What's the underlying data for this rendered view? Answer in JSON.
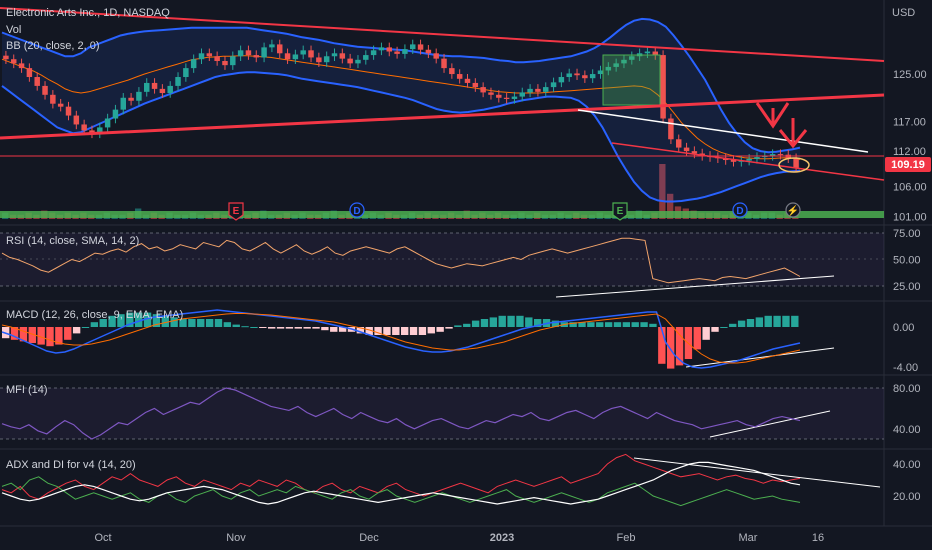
{
  "chart_data": {
    "type": "line",
    "symbol_title": "Electronic Arts Inc., 1D, NASDAQ",
    "currency": "USD",
    "overlay_labels": [
      "Vol",
      "BB (20, close, 2, 0)"
    ],
    "last_price": "109.19",
    "price_axis": [
      {
        "label": "125.00",
        "value": 125
      },
      {
        "label": "117.00",
        "value": 117
      },
      {
        "label": "112.00",
        "value": 112
      },
      {
        "label": "106.00",
        "value": 106
      },
      {
        "label": "101.00",
        "value": 101
      }
    ],
    "x_axis_labels": [
      "Oct",
      "Nov",
      "Dec",
      "2023",
      "Feb",
      "Mar",
      "16"
    ],
    "event_badges": [
      "E",
      "D",
      "E",
      "D",
      "⚡"
    ],
    "price_close": [
      127.5,
      126.8,
      126,
      124.5,
      123,
      121.5,
      120,
      119.5,
      118,
      116.5,
      115.5,
      115,
      116,
      117.5,
      119,
      121,
      120.5,
      122,
      123.5,
      122.5,
      121.8,
      123,
      124.5,
      126,
      127.5,
      128.5,
      128,
      127.2,
      126.5,
      128,
      129,
      128.2,
      127.8,
      129.5,
      130,
      128.5,
      127.5,
      128.3,
      129,
      127.8,
      127,
      128,
      128.5,
      127.6,
      126.8,
      127.4,
      128.2,
      129,
      129.5,
      128.8,
      128.4,
      129.2,
      130,
      129.1,
      128.5,
      127.6,
      126,
      125,
      124.2,
      123.5,
      122.8,
      121.9,
      121.5,
      121,
      120.8,
      121.2,
      121.9,
      122.5,
      122,
      122.8,
      123.6,
      124.5,
      125.1,
      124.8,
      124.3,
      125,
      125.6,
      126.2,
      126.8,
      127.4,
      128,
      128.5,
      128.8,
      128.2,
      117.5,
      114,
      112.6,
      112,
      111.6,
      111.2,
      111,
      110.8,
      110.5,
      110.2,
      110.4,
      110.7,
      111,
      111.2,
      111.5,
      111.4,
      110.8,
      109.19
    ],
    "bb_upper": [
      132,
      131.5,
      131,
      130.5,
      130,
      129.5,
      129,
      128.5,
      128,
      128,
      128.5,
      129.5,
      130,
      130.5,
      131,
      131.5,
      131.8,
      132,
      132.2,
      132.3,
      132.4,
      132.5,
      132.6,
      132.7,
      132.8,
      132.8,
      132.8,
      132.8,
      132.8,
      132.8,
      132.8,
      132.8,
      132.6,
      132.4,
      132.2,
      132,
      131.8,
      131.5,
      131.2,
      131,
      130.8,
      130.5,
      130.2,
      130,
      129.8,
      129.6,
      129.5,
      129.4,
      129.3,
      129.2,
      129.1,
      129,
      128.8,
      128.6,
      128.4,
      128.2,
      128.1,
      128,
      128,
      127.9,
      127.8,
      127.7,
      127.5,
      127.3,
      127.2,
      127,
      127,
      127.1,
      127.2,
      127.4,
      127.6,
      127.8,
      128,
      128.4,
      128.8,
      129.4,
      130.2,
      131.2,
      132.3,
      133.3,
      134,
      134.3,
      134.2,
      133.8,
      133,
      131.5,
      129.8,
      128,
      126,
      124,
      121.5,
      119,
      116.8,
      115,
      113.5,
      112.5,
      112,
      111.8,
      111.9,
      112.1,
      112.3,
      112.6
    ],
    "bb_lower": [
      123,
      122,
      121,
      120,
      119,
      118,
      117,
      116,
      115.5,
      115,
      115.2,
      115.8,
      116.4,
      117,
      117.6,
      118.2,
      118.8,
      119.4,
      120,
      120.5,
      121,
      121.5,
      122,
      122.5,
      123,
      123.5,
      124,
      124.5,
      124.8,
      125,
      125.2,
      125.3,
      125.3,
      125.2,
      125.1,
      125,
      124.8,
      124.5,
      124.2,
      124,
      123.8,
      123.6,
      123.4,
      123.2,
      123,
      122.8,
      122.5,
      122.2,
      121.9,
      121.6,
      121.3,
      121,
      120.6,
      120.1,
      119.6,
      119.1,
      118.8,
      118.6,
      118.5,
      118.6,
      118.8,
      119,
      119.3,
      119.6,
      120,
      120.3,
      120.6,
      120.8,
      121,
      121.2,
      121.2,
      121.1,
      121,
      120.5,
      119.5,
      118,
      116,
      113.5,
      111,
      108.8,
      106.8,
      105.3,
      104.2,
      103.7,
      103.5,
      103.5,
      103.6,
      103.8,
      104,
      104.3,
      104.7,
      105.1,
      105.6,
      106.1,
      106.6,
      107.1,
      107.6,
      108,
      108.3,
      108.5,
      108.6,
      108.7
    ],
    "bb_basis": [
      127.5,
      127,
      126.5,
      126,
      125.5,
      124.8,
      124,
      123.3,
      122.5,
      122,
      121.8,
      122,
      122.4,
      122.8,
      123.2,
      123.6,
      124,
      124.5,
      125,
      125.4,
      125.8,
      126.2,
      126.6,
      127,
      127.4,
      127.6,
      127.8,
      127.9,
      128,
      128,
      128.1,
      128.1,
      128,
      127.9,
      127.8,
      127.6,
      127.4,
      127.2,
      127,
      126.8,
      126.6,
      126.4,
      126.2,
      126,
      125.8,
      125.6,
      125.4,
      125.2,
      125,
      124.8,
      124.6,
      124.4,
      124.2,
      124,
      123.8,
      123.6,
      123.4,
      123.2,
      123,
      122.8,
      122.6,
      122.4,
      122.2,
      122,
      121.9,
      121.8,
      121.8,
      121.8,
      121.8,
      121.9,
      122,
      122.1,
      122.2,
      122.3,
      122.4,
      122.5,
      122.6,
      122.7,
      122.8,
      122.9,
      123,
      122.9,
      122.5,
      121.5,
      120.1,
      118.5,
      116.8,
      115.5,
      114.2,
      113.2,
      112.4,
      111.8,
      111.4,
      111.1,
      110.9,
      110.8,
      110.7,
      110.7,
      110.8,
      110.9,
      110.8,
      110.6
    ],
    "volume": [
      3,
      2,
      2,
      3,
      2,
      4,
      3,
      2,
      3,
      2,
      3,
      2,
      2,
      3,
      2,
      2,
      3,
      5,
      2,
      3,
      2,
      3,
      2,
      2,
      3,
      2,
      2,
      3,
      2,
      3,
      2,
      2,
      3,
      4,
      2,
      2,
      3,
      2,
      3,
      2,
      2,
      3,
      4,
      2,
      3,
      2,
      2,
      3,
      2,
      3,
      2,
      2,
      3,
      2,
      3,
      2,
      2,
      3,
      2,
      4,
      2,
      3,
      2,
      3,
      2,
      2,
      3,
      2,
      3,
      2,
      2,
      3,
      2,
      3,
      2,
      2,
      3,
      2,
      3,
      2,
      2,
      4,
      2,
      3,
      30,
      12,
      6,
      5,
      4,
      3,
      3,
      3,
      2,
      3,
      2,
      3,
      2,
      3,
      3,
      2,
      3,
      2
    ],
    "rsi": {
      "label": "RSI (14, close, SMA, 14, 2)",
      "axis": [
        {
          "label": "75.00",
          "value": 75
        },
        {
          "label": "50.00",
          "value": 50
        },
        {
          "label": "25.00",
          "value": 25
        }
      ],
      "values": [
        56,
        52,
        50,
        47,
        44,
        40,
        38,
        42,
        46,
        50,
        48,
        52,
        56,
        55,
        58,
        60,
        57,
        62,
        65,
        60,
        62,
        58,
        60,
        64,
        62,
        60,
        66,
        64,
        62,
        68,
        66,
        60,
        58,
        62,
        66,
        60,
        56,
        60,
        64,
        58,
        55,
        58,
        62,
        56,
        54,
        58,
        60,
        62,
        60,
        58,
        56,
        60,
        62,
        58,
        54,
        50,
        46,
        44,
        42,
        44,
        46,
        45,
        44,
        46,
        48,
        50,
        52,
        50,
        54,
        56,
        58,
        60,
        58,
        56,
        58,
        60,
        62,
        64,
        66,
        68,
        70,
        70,
        69,
        68,
        32,
        30,
        28,
        29,
        30,
        31,
        32,
        31,
        30,
        33,
        34,
        33,
        32,
        34,
        36,
        38,
        40,
        42,
        38,
        34
      ]
    },
    "macd": {
      "label": "MACD (12, 26, close, 9, EMA, EMA)",
      "axis": [
        {
          "label": "0.00",
          "value": 0
        },
        {
          "label": "-4.00",
          "value": -4
        }
      ],
      "macd_line": [
        -0.5,
        -0.8,
        -1.2,
        -1.6,
        -2,
        -2.4,
        -2.6,
        -2.5,
        -2.2,
        -1.8,
        -1.4,
        -1,
        -0.6,
        -0.2,
        0.2,
        0.5,
        0.8,
        1,
        1.1,
        1.2,
        1.3,
        1.4,
        1.5,
        1.6,
        1.7,
        1.6,
        1.5,
        1.4,
        1.3,
        1.2,
        1.1,
        1,
        0.9,
        0.8,
        0.7,
        0.6,
        0.4,
        0.2,
        0,
        -0.2,
        -0.5,
        -0.8,
        -1.1,
        -1.4,
        -1.7,
        -2,
        -2.2,
        -2.4,
        -2.5,
        -2.5,
        -2.4,
        -2.2,
        -2,
        -1.7,
        -1.4,
        -1.1,
        -0.8,
        -0.5,
        -0.2,
        0,
        0.2,
        0.4,
        0.5,
        0.6,
        0.7,
        0.8,
        0.9,
        1,
        1.1,
        1.2,
        1.3,
        1.4,
        1.5,
        1.5,
        -1.5,
        -2.8,
        -3.6,
        -4,
        -4.1,
        -4,
        -3.8,
        -3.6,
        -3.4,
        -3.1,
        -2.8,
        -2.5,
        -2.2,
        -2,
        -1.8,
        -1.6
      ],
      "signal_line": [
        0.2,
        0,
        -0.3,
        -0.6,
        -0.9,
        -1.2,
        -1.5,
        -1.7,
        -1.8,
        -1.8,
        -1.7,
        -1.5,
        -1.3,
        -1,
        -0.7,
        -0.4,
        -0.1,
        0.2,
        0.4,
        0.6,
        0.8,
        0.9,
        1,
        1.1,
        1.2,
        1.3,
        1.35,
        1.35,
        1.3,
        1.25,
        1.2,
        1.1,
        1,
        0.9,
        0.8,
        0.7,
        0.6,
        0.5,
        0.3,
        0.1,
        -0.1,
        -0.3,
        -0.6,
        -0.9,
        -1.2,
        -1.5,
        -1.7,
        -1.9,
        -2.1,
        -2.2,
        -2.3,
        -2.3,
        -2.2,
        -2.1,
        -1.9,
        -1.7,
        -1.5,
        -1.2,
        -0.9,
        -0.6,
        -0.3,
        -0.1,
        0.1,
        0.3,
        0.4,
        0.5,
        0.6,
        0.7,
        0.8,
        0.9,
        1,
        1.1,
        1.2,
        1.3,
        0.8,
        -0.2,
        -1.2,
        -2,
        -2.7,
        -3.2,
        -3.5,
        -3.6,
        -3.6,
        -3.5,
        -3.3,
        -3.1,
        -2.9,
        -2.7,
        -2.5,
        -2.3
      ]
    },
    "mfi": {
      "label": "MFI (14)",
      "axis": [
        {
          "label": "80.00",
          "value": 80
        },
        {
          "label": "40.00",
          "value": 40
        }
      ],
      "values": [
        45,
        42,
        40,
        44,
        38,
        35,
        42,
        48,
        44,
        36,
        30,
        34,
        40,
        46,
        44,
        50,
        56,
        60,
        54,
        58,
        62,
        66,
        64,
        70,
        76,
        80,
        78,
        74,
        70,
        66,
        62,
        60,
        58,
        62,
        56,
        52,
        56,
        60,
        54,
        50,
        56,
        52,
        48,
        46,
        50,
        44,
        40,
        44,
        48,
        50,
        46,
        42,
        40,
        44,
        48,
        46,
        50,
        54,
        52,
        56,
        50,
        48,
        52,
        56,
        58,
        54,
        50,
        56,
        60,
        62,
        58,
        54,
        50,
        56,
        52,
        48,
        46,
        44,
        40,
        42,
        44,
        46,
        48,
        44,
        42,
        46,
        50,
        52,
        50,
        48
      ]
    },
    "adx": {
      "label": "ADX and DI for v4 (14, 20)",
      "axis": [
        {
          "label": "40.00",
          "value": 40
        },
        {
          "label": "20.00",
          "value": 20
        }
      ],
      "adx": [
        22,
        20,
        18,
        17,
        18,
        20,
        22,
        24,
        26,
        27,
        26,
        24,
        22,
        20,
        18,
        17,
        18,
        20,
        22,
        23,
        24,
        25,
        26,
        25,
        24,
        22,
        20,
        18,
        16,
        15,
        16,
        18,
        20,
        22,
        23,
        22,
        21,
        20,
        19,
        18,
        17,
        16,
        17,
        18,
        19,
        20,
        21,
        22,
        21,
        20,
        19,
        18,
        17,
        16,
        15,
        16,
        17,
        18,
        19,
        18,
        17,
        16,
        15,
        16,
        17,
        18,
        20,
        22,
        24,
        26,
        28,
        30,
        33,
        36,
        38,
        40,
        41,
        41,
        40,
        39,
        38,
        37,
        36,
        34,
        32,
        30,
        28,
        27
      ],
      "di_plus": [
        24,
        22,
        26,
        20,
        18,
        22,
        25,
        28,
        30,
        26,
        24,
        28,
        32,
        30,
        34,
        30,
        28,
        26,
        30,
        32,
        28,
        26,
        30,
        28,
        26,
        24,
        28,
        26,
        30,
        28,
        26,
        30,
        28,
        24,
        22,
        26,
        28,
        24,
        22,
        26,
        24,
        22,
        26,
        28,
        24,
        22,
        20,
        22,
        24,
        26,
        28,
        26,
        24,
        22,
        26,
        28,
        30,
        28,
        26,
        28,
        30,
        32,
        28,
        30,
        32,
        34,
        40,
        44,
        46,
        42,
        40,
        38,
        36,
        34,
        32,
        33,
        34,
        32,
        30,
        32,
        33,
        31,
        30,
        28,
        30,
        29,
        30,
        31
      ],
      "di_minus": [
        26,
        28,
        24,
        30,
        32,
        28,
        26,
        22,
        18,
        20,
        22,
        20,
        18,
        20,
        22,
        18,
        16,
        20,
        22,
        18,
        16,
        20,
        22,
        24,
        20,
        18,
        22,
        24,
        20,
        22,
        24,
        22,
        26,
        24,
        22,
        20,
        18,
        22,
        24,
        20,
        18,
        22,
        24,
        20,
        18,
        16,
        18,
        20,
        22,
        20,
        18,
        16,
        18,
        20,
        22,
        24,
        20,
        18,
        16,
        18,
        20,
        22,
        20,
        18,
        16,
        18,
        22,
        24,
        26,
        28,
        24,
        20,
        18,
        16,
        14,
        16,
        18,
        20,
        22,
        24,
        22,
        20,
        18,
        19,
        20,
        18,
        17,
        16
      ]
    }
  }
}
